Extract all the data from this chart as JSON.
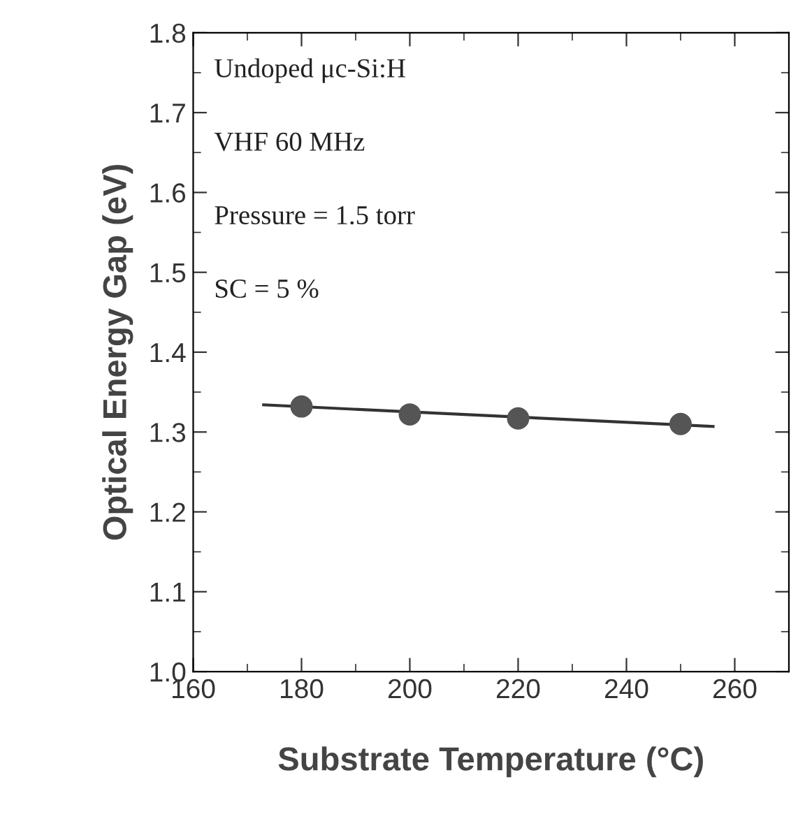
{
  "chart_data": {
    "type": "scatter",
    "xlabel": "Substrate Temperature (°C)",
    "ylabel": "Optical Energy Gap (eV)",
    "series": [
      {
        "color": "#555555",
        "x": [
          180,
          200,
          220,
          250
        ],
        "values": [
          1.332,
          1.322,
          1.317,
          1.31
        ],
        "marker": "circle"
      },
      {
        "type": "line",
        "color": "#333333",
        "x": [
          173,
          256
        ],
        "values": [
          1.334,
          1.307
        ],
        "marker": "none",
        "line_style": "solid"
      }
    ],
    "annotations": [
      "Undoped μc-Si:H",
      "VHF 60 MHz",
      "Pressure = 1.5 torr",
      "SC = 5 %"
    ],
    "xlim": [
      160,
      270
    ],
    "ylim": [
      1.0,
      1.8
    ],
    "xticks": [
      160,
      180,
      200,
      220,
      240,
      260
    ],
    "yticks": [
      {
        "value": 1.0,
        "label": "1.0"
      },
      1.1,
      1.2,
      1.3,
      1.4,
      1.5,
      1.6,
      1.7,
      1.8
    ],
    "grid": false,
    "legend": false
  }
}
